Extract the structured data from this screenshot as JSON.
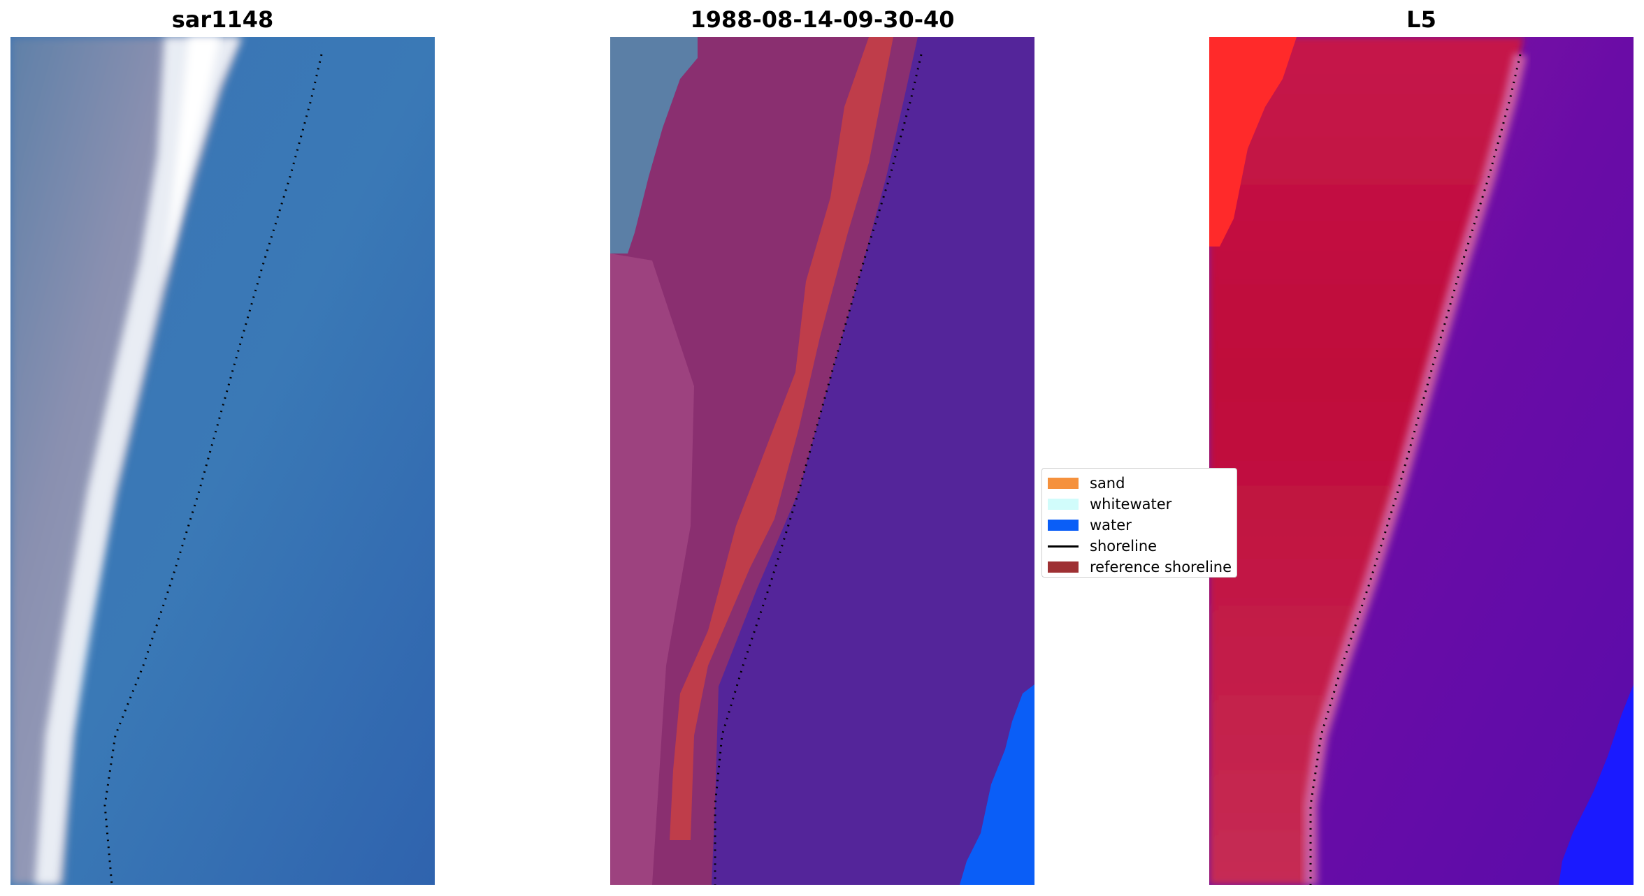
{
  "panels": {
    "rgb": {
      "title": "sar1148"
    },
    "classified": {
      "title": "1988-08-14-09-30-40"
    },
    "mndwi": {
      "title": "L5"
    }
  },
  "legend": {
    "items": [
      {
        "label": "sand",
        "kind": "patch",
        "color": "#f5913d"
      },
      {
        "label": "whitewater",
        "kind": "patch",
        "color": "#d1fcfb"
      },
      {
        "label": "water",
        "kind": "patch",
        "color": "#0a5ef7"
      },
      {
        "label": "shoreline",
        "kind": "line",
        "color": "#000000"
      },
      {
        "label": "reference shoreline",
        "kind": "patch",
        "color": "#9e3033"
      }
    ]
  },
  "colors": {
    "land": "#7e89a9",
    "ocean": "#3577b6",
    "foam": "#eef2f8",
    "class_land": "#8a2f70",
    "class_ref": "#c23e48",
    "class_water": "#54259a",
    "class_deep": "#0a5ef7",
    "mndwi_land": "#c41a46",
    "mndwi_edge": "#ff2a2a",
    "mndwi_water": "#6a0ca6",
    "mndwi_deep": "#1a1aff"
  }
}
